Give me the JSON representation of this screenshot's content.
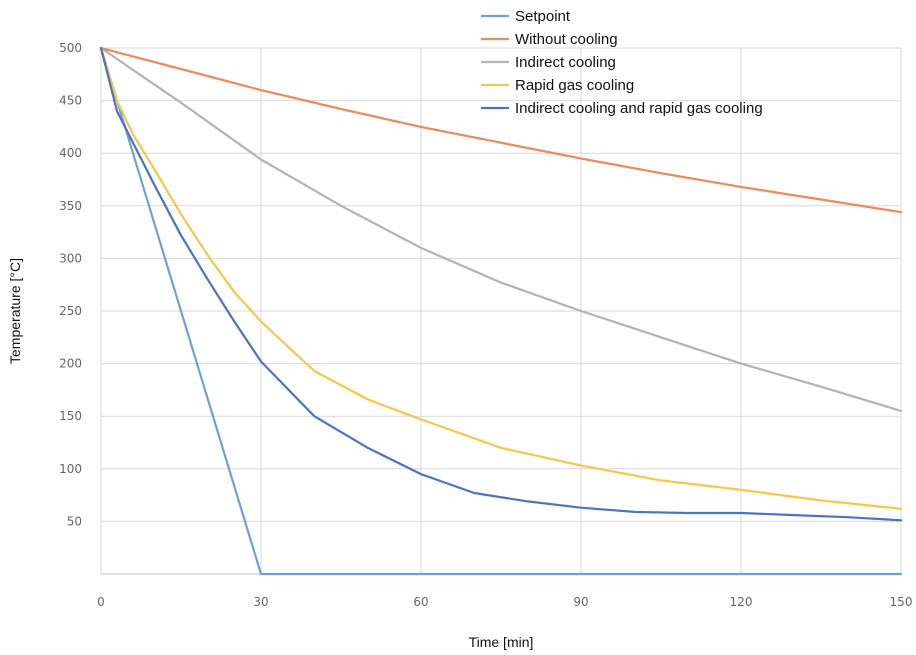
{
  "chart_data": {
    "type": "line",
    "xlabel": "Time [min]",
    "ylabel": "Temperature [°C]",
    "xlim": [
      0,
      150
    ],
    "ylim": [
      0,
      500
    ],
    "xticks": [
      0,
      30,
      60,
      90,
      120,
      150
    ],
    "yticks": [
      50,
      100,
      150,
      200,
      250,
      300,
      350,
      400,
      450,
      500
    ],
    "grid": true,
    "legend_position": "top-right",
    "series": [
      {
        "name": "Setpoint",
        "color": "#6fa1d8",
        "x": [
          0,
          30,
          150
        ],
        "y": [
          500,
          0,
          0
        ]
      },
      {
        "name": "Without cooling",
        "color": "#ed8a5b",
        "x": [
          0,
          15,
          30,
          45,
          60,
          75,
          90,
          105,
          120,
          135,
          150
        ],
        "y": [
          500,
          480,
          460,
          442,
          425,
          410,
          395,
          381,
          368,
          356,
          344
        ]
      },
      {
        "name": "Indirect cooling",
        "color": "#b3b3b3",
        "x": [
          0,
          15,
          30,
          45,
          60,
          75,
          90,
          105,
          120,
          135,
          150
        ],
        "y": [
          500,
          448,
          394,
          350,
          310,
          277,
          250,
          225,
          200,
          178,
          155
        ]
      },
      {
        "name": "Rapid gas cooling",
        "color": "#f9c64b",
        "x": [
          0,
          3,
          6,
          10,
          15,
          20,
          25,
          30,
          40,
          50,
          60,
          75,
          90,
          105,
          120,
          135,
          150
        ],
        "y": [
          500,
          450,
          418,
          385,
          342,
          303,
          268,
          240,
          193,
          166,
          147,
          120,
          103,
          89,
          80,
          70,
          62
        ]
      },
      {
        "name": "Indirect cooling and rapid gas cooling",
        "color": "#4a73c4",
        "x": [
          0,
          3,
          6,
          10,
          15,
          20,
          25,
          30,
          40,
          50,
          60,
          70,
          80,
          90,
          100,
          110,
          120,
          130,
          140,
          150
        ],
        "y": [
          500,
          440,
          410,
          370,
          322,
          280,
          240,
          202,
          150,
          120,
          95,
          77,
          69,
          63,
          59,
          58,
          58,
          56,
          54,
          51
        ]
      }
    ]
  }
}
